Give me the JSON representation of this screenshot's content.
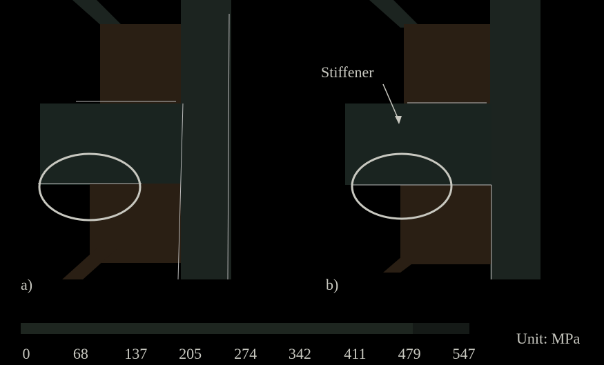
{
  "panels": [
    {
      "label": "a)"
    },
    {
      "label": "b)",
      "annotation": "Stiffener"
    }
  ],
  "colorbar": {
    "ticks": [
      0,
      68,
      137,
      205,
      274,
      342,
      411,
      479,
      547
    ],
    "unit": "Unit: MPa"
  }
}
